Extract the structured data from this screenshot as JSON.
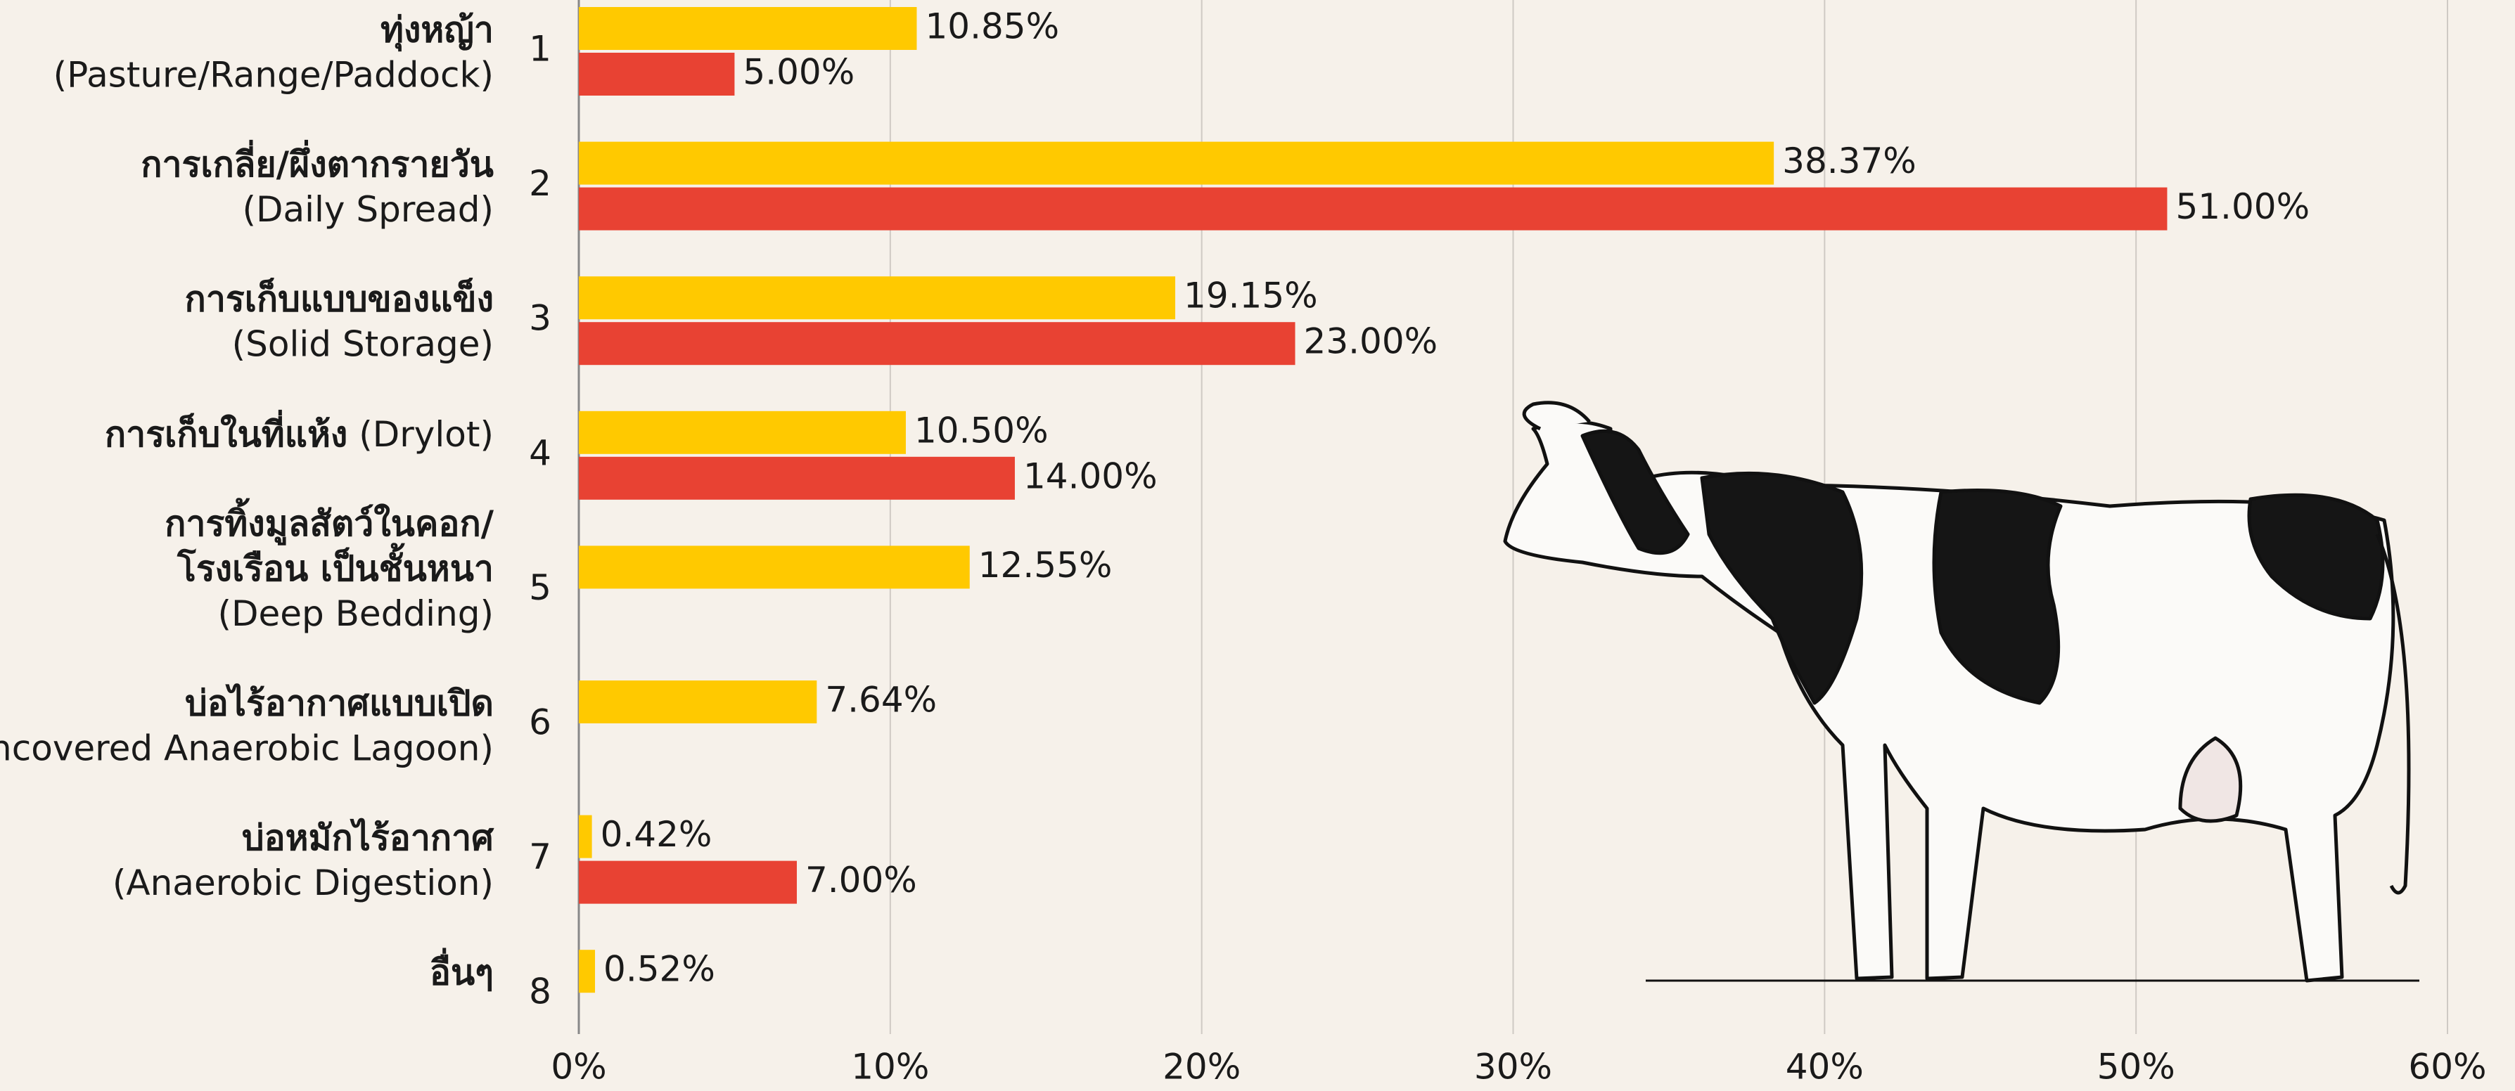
{
  "chart_data": {
    "type": "bar",
    "orientation": "horizontal",
    "categories": [
      "1",
      "2",
      "3",
      "4",
      "5",
      "6",
      "7",
      "8"
    ],
    "category_labels": [
      {
        "thai": [
          "ทุ่งหญ้า"
        ],
        "english": "(Pasture/Range/Paddock)"
      },
      {
        "thai": [
          "การเกลี่ย/ผึ่งตากรายวัน"
        ],
        "english": "(Daily Spread)"
      },
      {
        "thai": [
          "การเก็บแบบของแข็ง"
        ],
        "english": "(Solid Storage)"
      },
      {
        "thai": [
          "การเก็บในที่แห้ง"
        ],
        "english": "(Drylot)",
        "same_line": true
      },
      {
        "thai": [
          "การทิ้งมูลสัตว์ในคอก/",
          "โรงเรือน เป็นชั้นหนา"
        ],
        "english": "(Deep Bedding)"
      },
      {
        "thai": [
          "บ่อไร้อากาศแบบเปิด"
        ],
        "english": "(Uncovered Anaerobic Lagoon)"
      },
      {
        "thai": [
          "บ่อหมักไร้อากาศ"
        ],
        "english": "(Anaerobic Digestion)"
      },
      {
        "thai": [
          "อื่นๆ"
        ]
      }
    ],
    "series": [
      {
        "color": "#FFC900",
        "values": [
          10.85,
          38.37,
          19.15,
          10.5,
          12.55,
          7.64,
          0.42,
          0.52
        ],
        "value_labels": [
          "10.85%",
          "38.37%",
          "19.15%",
          "10.50%",
          "12.55%",
          "7.64%",
          "0.42%",
          "0.52%"
        ]
      },
      {
        "color": "#E84233",
        "values": [
          5,
          51,
          23,
          14,
          null,
          null,
          7,
          null
        ],
        "value_labels": [
          "5.00%",
          "51.00%",
          "23.00%",
          "14.00%",
          null,
          null,
          "7.00%",
          null
        ]
      }
    ],
    "xlim": [
      0,
      60
    ],
    "xticks": [
      {
        "value": 0,
        "label": "0%"
      },
      {
        "value": 10,
        "label": "10%"
      },
      {
        "value": 20,
        "label": "20%"
      },
      {
        "value": 30,
        "label": "30%"
      },
      {
        "value": 40,
        "label": "40%"
      },
      {
        "value": 50,
        "label": "50%"
      },
      {
        "value": 60,
        "label": "60%"
      }
    ],
    "grid": true
  }
}
